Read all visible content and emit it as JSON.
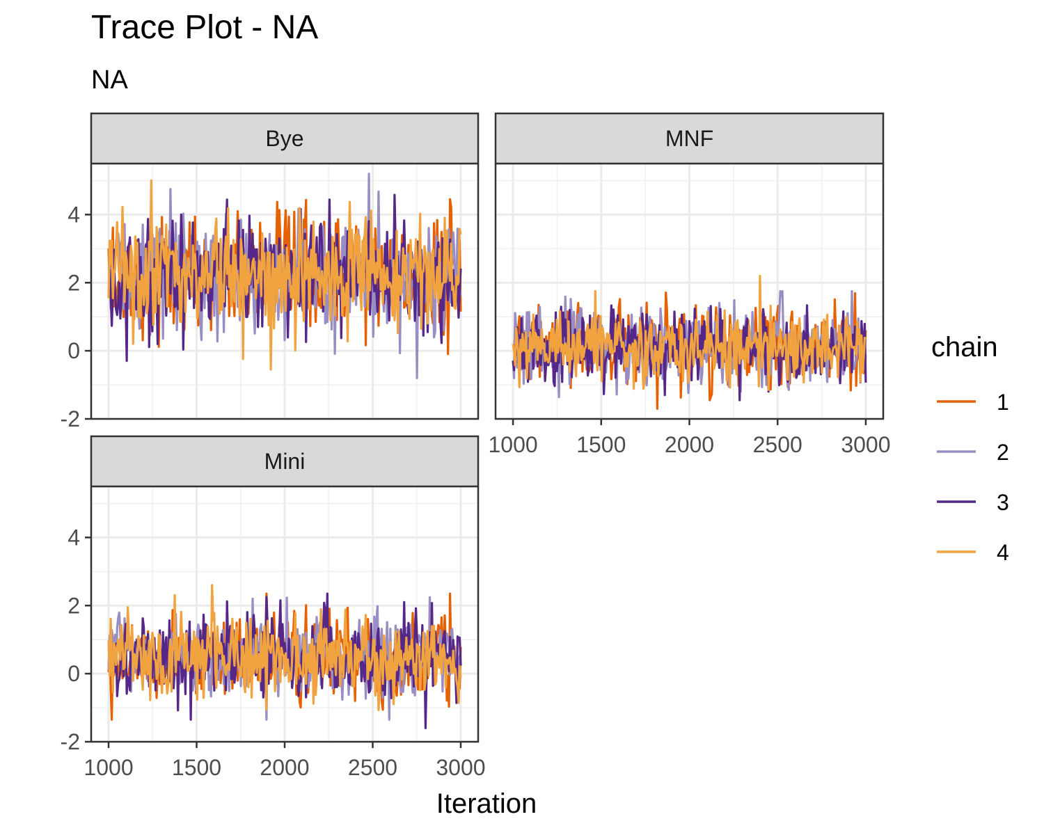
{
  "title": "Trace Plot - NA",
  "subtitle": "NA",
  "chart_data": {
    "type": "line",
    "title": "Trace Plot - NA",
    "subtitle": "NA",
    "xlabel": "Iteration",
    "ylabel": "",
    "xlim": [
      1000,
      3000
    ],
    "ylim": [
      -2,
      5.5
    ],
    "x_ticks": [
      1000,
      1500,
      2000,
      2500,
      3000
    ],
    "y_ticks": [
      -2,
      0,
      2,
      4
    ],
    "x_tick_labels": [
      "1000",
      "1500",
      "2000",
      "2500",
      "3000"
    ],
    "y_tick_labels": [
      "-2",
      "0",
      "2",
      "4"
    ],
    "grid": true,
    "legend": {
      "title": "chain",
      "position": "right",
      "entries": [
        {
          "label": "1",
          "color": "#e66101"
        },
        {
          "label": "2",
          "color": "#998ec3"
        },
        {
          "label": "3",
          "color": "#542788"
        },
        {
          "label": "4",
          "color": "#f1a340"
        }
      ]
    },
    "panels": [
      {
        "name": "Bye",
        "iterations": [
          1000,
          3000
        ],
        "center": 2.2,
        "range": [
          -0.8,
          5.2
        ],
        "peaks": [
          {
            "chain": "2",
            "x": 2480,
            "y": 5.2
          },
          {
            "chain": "4",
            "x": 1240,
            "y": 5.0
          },
          {
            "chain": "2",
            "x": 2750,
            "y": -0.8
          }
        ]
      },
      {
        "name": "MNF",
        "iterations": [
          1000,
          3000
        ],
        "center": 0.1,
        "range": [
          -1.7,
          2.2
        ],
        "peaks": [
          {
            "chain": "4",
            "x": 2400,
            "y": 2.2
          },
          {
            "chain": "1",
            "x": 1820,
            "y": -1.7
          }
        ]
      },
      {
        "name": "Mini",
        "iterations": [
          1000,
          3000
        ],
        "center": 0.5,
        "range": [
          -1.6,
          2.8
        ],
        "peaks": [
          {
            "chain": "3",
            "x": 2800,
            "y": 2.8
          },
          {
            "chain": "4",
            "x": 1590,
            "y": 2.6
          },
          {
            "chain": "3",
            "x": 2800,
            "y": -1.6
          }
        ]
      }
    ]
  }
}
